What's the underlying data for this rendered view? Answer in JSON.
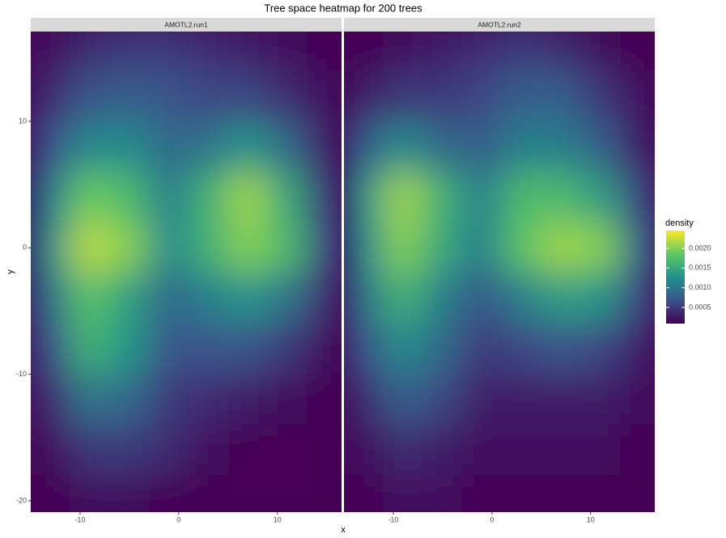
{
  "chart_data": {
    "type": "heatmap",
    "title": "Tree space heatmap for 200 trees",
    "x_label": "x",
    "y_label": "y",
    "xlim": [
      -15,
      16.5
    ],
    "ylim": [
      -20.9,
      17.1
    ],
    "xticks": [
      -10,
      0,
      10
    ],
    "yticks": [
      -20,
      -10,
      0,
      10
    ],
    "x": [
      -13,
      -9,
      -5,
      -1,
      3,
      7,
      11,
      15
    ],
    "y": [
      16,
      12,
      8,
      4,
      0,
      -4,
      -8,
      -12,
      -16,
      -20
    ],
    "colorscale": [
      "#440154",
      "#3b528b",
      "#21918c",
      "#5ec962",
      "#fde725"
    ],
    "panels": [
      {
        "name": "AMOTL2.run1",
        "values": [
          [
            0.0002,
            0.0004,
            0.0005,
            0.0005,
            0.0004,
            0.0003,
            0.0002,
            0.0001
          ],
          [
            0.0004,
            0.0007,
            0.0008,
            0.0007,
            0.0006,
            0.0006,
            0.0004,
            0.0002
          ],
          [
            0.0007,
            0.0012,
            0.0012,
            0.0009,
            0.001,
            0.0013,
            0.0009,
            0.0003
          ],
          [
            0.0011,
            0.0019,
            0.0017,
            0.0011,
            0.0016,
            0.0021,
            0.0015,
            0.0005
          ],
          [
            0.0013,
            0.0022,
            0.002,
            0.0012,
            0.0016,
            0.002,
            0.0017,
            0.0006
          ],
          [
            0.001,
            0.0018,
            0.0014,
            0.0009,
            0.0011,
            0.0013,
            0.001,
            0.0004
          ],
          [
            0.0007,
            0.0016,
            0.0013,
            0.0007,
            0.0007,
            0.0007,
            0.0005,
            0.0002
          ],
          [
            0.0004,
            0.001,
            0.0009,
            0.0005,
            0.0004,
            0.0003,
            0.0002,
            0.0001
          ],
          [
            0.0002,
            0.0005,
            0.0005,
            0.0004,
            0.0002,
            0.0001,
            0.0001,
            0.0001
          ],
          [
            0.0001,
            0.0002,
            0.0002,
            0.0001,
            0.0001,
            0.0001,
            0.0001,
            0.0001
          ]
        ]
      },
      {
        "name": "AMOTL2.run2",
        "values": [
          [
            0.0001,
            0.0002,
            0.0003,
            0.0004,
            0.0005,
            0.0004,
            0.0002,
            0.0001
          ],
          [
            0.0003,
            0.0005,
            0.0005,
            0.0006,
            0.0008,
            0.0008,
            0.0005,
            0.0002
          ],
          [
            0.0008,
            0.0012,
            0.0009,
            0.0008,
            0.0011,
            0.0011,
            0.0008,
            0.0003
          ],
          [
            0.0013,
            0.0021,
            0.0016,
            0.0011,
            0.0017,
            0.0017,
            0.0014,
            0.0006
          ],
          [
            0.0012,
            0.002,
            0.0015,
            0.0011,
            0.0018,
            0.0021,
            0.002,
            0.0009
          ],
          [
            0.001,
            0.0016,
            0.0011,
            0.0007,
            0.0011,
            0.0014,
            0.0013,
            0.0006
          ],
          [
            0.0007,
            0.0012,
            0.0009,
            0.0005,
            0.0006,
            0.0007,
            0.0006,
            0.0003
          ],
          [
            0.0004,
            0.0008,
            0.0006,
            0.0003,
            0.0003,
            0.0003,
            0.0003,
            0.0002
          ],
          [
            0.0002,
            0.0004,
            0.0003,
            0.0002,
            0.0002,
            0.0002,
            0.0002,
            0.0001
          ],
          [
            0.0001,
            0.0002,
            0.0002,
            0.0001,
            0.0001,
            0.0001,
            0.0001,
            0.0001
          ]
        ]
      }
    ],
    "colorbar": {
      "title": "density",
      "lim": [
        9e-05,
        0.00245
      ],
      "ticks": [
        0.0005,
        {
          "value": 0.001,
          "label": "0.0010"
        },
        0.0015,
        {
          "value": 0.002,
          "label": "0.0020"
        }
      ]
    }
  }
}
